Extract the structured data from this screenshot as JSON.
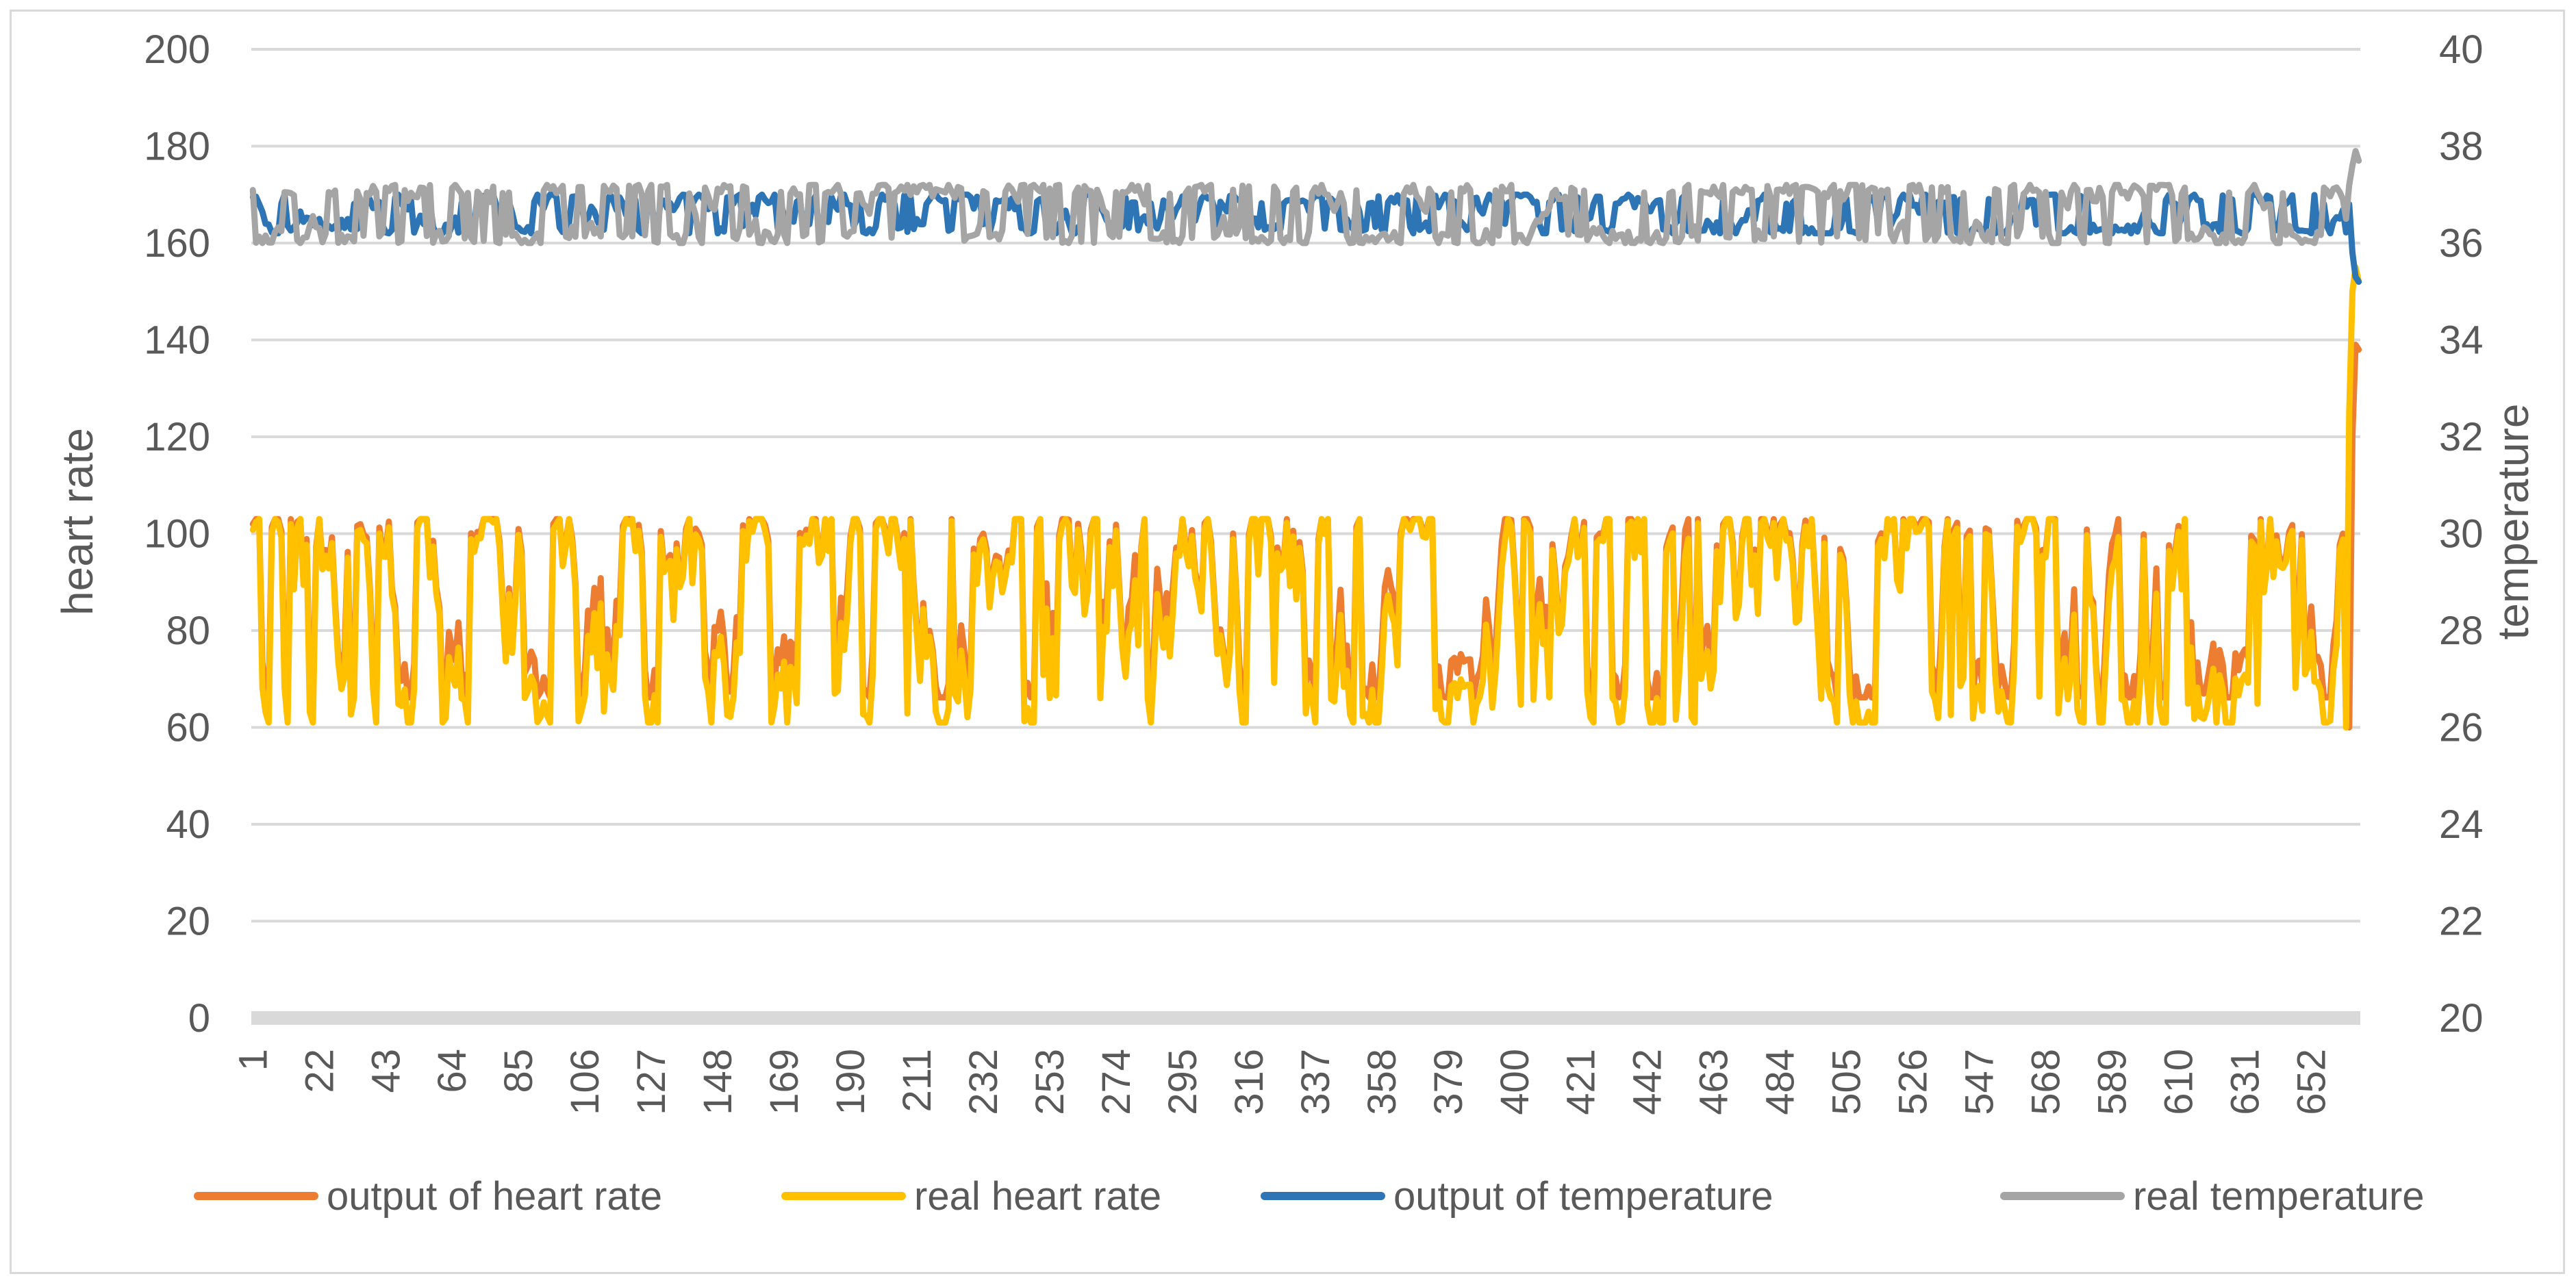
{
  "chart_data": {
    "type": "line",
    "title": "",
    "xlabel": "",
    "ylabel": "heart rate",
    "y2label": "temperature",
    "ylim": [
      0,
      200
    ],
    "y2lim": [
      20,
      40
    ],
    "yticks": [
      "0",
      "20",
      "40",
      "60",
      "80",
      "100",
      "120",
      "140",
      "160",
      "180",
      "200"
    ],
    "y2ticks": [
      "20",
      "22",
      "24",
      "26",
      "28",
      "30",
      "32",
      "34",
      "36",
      "38",
      "40"
    ],
    "x_count": 667,
    "x_tick_labels": [
      "1",
      "22",
      "43",
      "64",
      "85",
      "106",
      "127",
      "148",
      "169",
      "190",
      "211",
      "232",
      "253",
      "274",
      "295",
      "316",
      "337",
      "358",
      "379",
      "400",
      "421",
      "442",
      "463",
      "484",
      "505",
      "526",
      "547",
      "568",
      "589",
      "610",
      "631",
      "652"
    ],
    "x_tick_values": [
      1,
      22,
      43,
      64,
      85,
      106,
      127,
      148,
      169,
      190,
      211,
      232,
      253,
      274,
      295,
      316,
      337,
      358,
      379,
      400,
      421,
      442,
      463,
      484,
      505,
      526,
      547,
      568,
      589,
      610,
      631,
      652
    ],
    "grid": true,
    "legend_position": "bottom",
    "series": [
      {
        "name": "output of heart rate",
        "axis": "left",
        "color": "#ED7D31",
        "description": "fluctuates between about 65 and 103 over samples 1-660, then rises to about 139 at the end",
        "range": [
          65,
          103
        ],
        "end_values": [
          60,
          120,
          139,
          138
        ]
      },
      {
        "name": "real heart rate",
        "axis": "left",
        "color": "#FFC000",
        "description": "fluctuates between about 61 and 103 over samples 1-660, then rises to about 155 at the end",
        "range": [
          61,
          103
        ],
        "end_values": [
          60,
          125,
          150,
          155,
          152
        ]
      },
      {
        "name": "output of temperature",
        "axis": "right",
        "color": "#2E75B6",
        "description": "fluctuates between about 36.2 and 37.0, then drops to about 35.2 at the end",
        "range": [
          36.2,
          37.0
        ],
        "end_values": [
          36.8,
          35.8,
          35.3,
          35.2
        ]
      },
      {
        "name": "real temperature",
        "axis": "right",
        "color": "#A5A5A5",
        "description": "fluctuates between about 36.0 and 37.2, then rises to about 37.9 at the end",
        "range": [
          36.0,
          37.2
        ],
        "end_values": [
          36.5,
          37.2,
          37.6,
          37.9,
          37.7
        ]
      }
    ]
  }
}
